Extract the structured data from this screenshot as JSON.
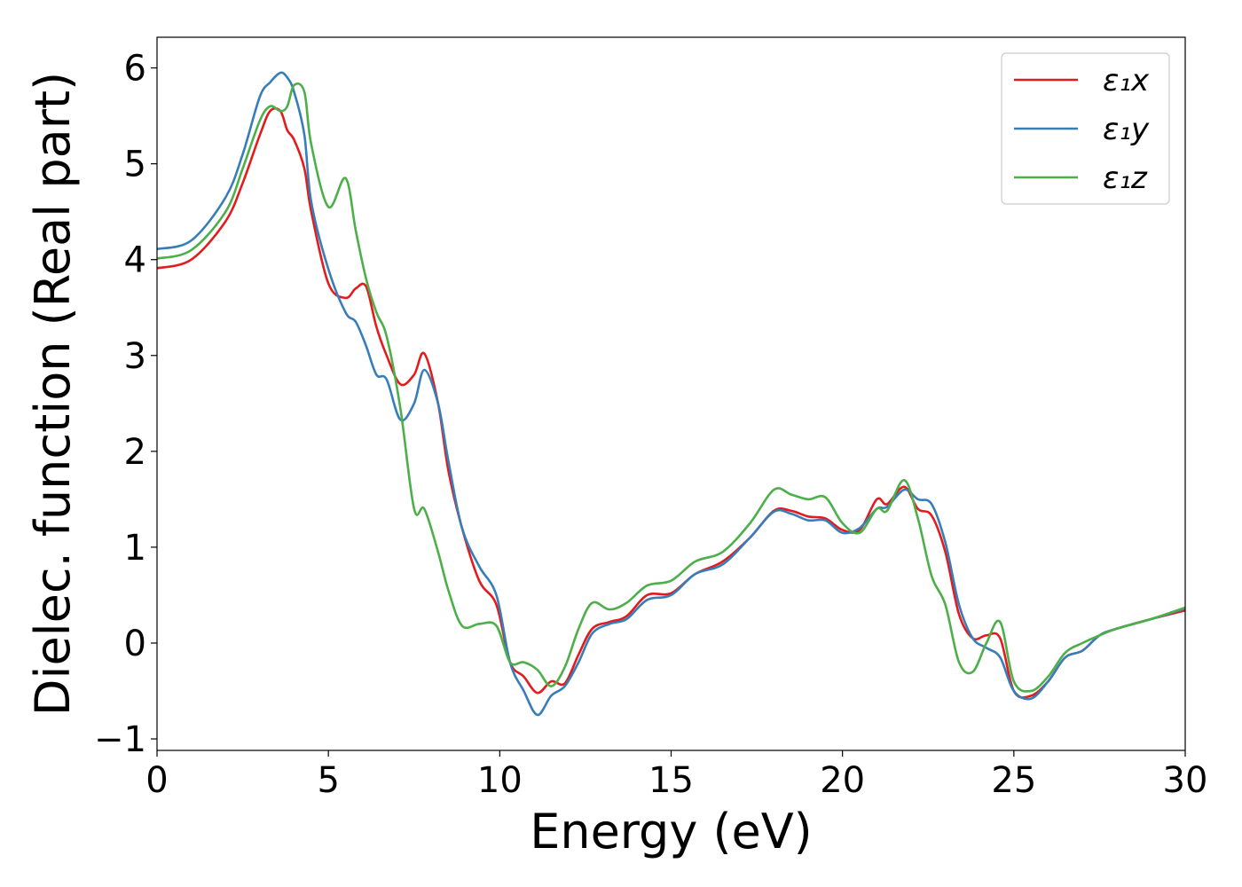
{
  "chart_data": {
    "type": "line",
    "title": "",
    "xlabel": "Energy (eV)",
    "ylabel": "Dielec. function (Real part)",
    "xlim": [
      0,
      30
    ],
    "ylim": [
      -1.12,
      6.32
    ],
    "xticks": [
      0,
      5,
      10,
      15,
      20,
      25,
      30
    ],
    "xtick_labels": [
      "0",
      "5",
      "10",
      "15",
      "20",
      "25",
      "30"
    ],
    "yticks": [
      -1,
      0,
      1,
      2,
      3,
      4,
      5,
      6
    ],
    "ytick_labels": [
      "−1",
      "0",
      "1",
      "2",
      "3",
      "4",
      "5",
      "6"
    ],
    "grid": false,
    "legend_position": "top-right",
    "series": [
      {
        "name": "ε₁x",
        "color": "#e41a1c",
        "x": [
          0,
          1,
          2,
          2.5,
          3,
          3.3,
          3.6,
          3.8,
          4.0,
          4.3,
          4.5,
          5.0,
          5.5,
          5.8,
          6.1,
          6.4,
          6.7,
          7.1,
          7.5,
          7.8,
          8.2,
          8.5,
          8.9,
          9.4,
          9.9,
          10.3,
          10.7,
          11.1,
          11.5,
          11.9,
          12.3,
          12.7,
          13.2,
          13.7,
          14.3,
          15.0,
          15.7,
          16.5,
          17.3,
          18.0,
          18.5,
          19.0,
          19.5,
          20.0,
          20.5,
          21.0,
          21.3,
          21.8,
          22.2,
          22.6,
          23.0,
          23.4,
          23.8,
          24.2,
          24.6,
          25.0,
          25.5,
          26.0,
          26.5,
          27.0,
          27.5,
          28.0,
          29.0,
          30.0
        ],
        "values": [
          3.91,
          4.0,
          4.4,
          4.8,
          5.3,
          5.55,
          5.55,
          5.35,
          5.25,
          4.95,
          4.5,
          3.75,
          3.6,
          3.7,
          3.72,
          3.3,
          3.0,
          2.7,
          2.8,
          3.02,
          2.5,
          1.8,
          1.2,
          0.65,
          0.4,
          -0.2,
          -0.35,
          -0.52,
          -0.4,
          -0.42,
          -0.12,
          0.15,
          0.22,
          0.28,
          0.5,
          0.52,
          0.72,
          0.85,
          1.1,
          1.38,
          1.38,
          1.32,
          1.3,
          1.18,
          1.18,
          1.5,
          1.45,
          1.63,
          1.4,
          1.33,
          0.95,
          0.3,
          0.05,
          0.08,
          0.05,
          -0.5,
          -0.55,
          -0.4,
          -0.15,
          -0.08,
          0.08,
          0.15,
          0.25,
          0.34
        ]
      },
      {
        "name": "ε₁y",
        "color": "#377eb8",
        "x": [
          0,
          1,
          2,
          2.5,
          3,
          3.3,
          3.6,
          3.8,
          4.0,
          4.3,
          4.5,
          5.0,
          5.5,
          5.8,
          6.1,
          6.4,
          6.7,
          7.1,
          7.5,
          7.8,
          8.2,
          8.5,
          8.9,
          9.4,
          9.9,
          10.3,
          10.7,
          11.1,
          11.5,
          11.9,
          12.3,
          12.7,
          13.2,
          13.7,
          14.3,
          15.0,
          15.7,
          16.5,
          17.3,
          18.0,
          18.5,
          19.0,
          19.5,
          20.0,
          20.5,
          21.0,
          21.3,
          21.8,
          22.2,
          22.6,
          23.0,
          23.4,
          23.8,
          24.2,
          24.6,
          25.0,
          25.5,
          26.0,
          26.5,
          27.0,
          27.5,
          28.0,
          29.0,
          30.0
        ],
        "values": [
          4.11,
          4.2,
          4.65,
          5.1,
          5.7,
          5.85,
          5.95,
          5.9,
          5.75,
          5.3,
          4.6,
          3.9,
          3.45,
          3.35,
          3.1,
          2.8,
          2.75,
          2.33,
          2.5,
          2.85,
          2.5,
          1.9,
          1.2,
          0.8,
          0.5,
          -0.2,
          -0.5,
          -0.75,
          -0.55,
          -0.45,
          -0.2,
          0.1,
          0.2,
          0.25,
          0.45,
          0.5,
          0.72,
          0.82,
          1.1,
          1.37,
          1.35,
          1.28,
          1.28,
          1.15,
          1.2,
          1.4,
          1.42,
          1.6,
          1.5,
          1.45,
          1.05,
          0.4,
          0.05,
          -0.05,
          -0.15,
          -0.5,
          -0.58,
          -0.4,
          -0.15,
          -0.08,
          0.08,
          0.15,
          0.25,
          0.36
        ]
      },
      {
        "name": "ε₁z",
        "color": "#4daf4a",
        "x": [
          0,
          1,
          2,
          2.5,
          3,
          3.3,
          3.6,
          3.8,
          4.0,
          4.3,
          4.5,
          5.0,
          5.5,
          5.8,
          6.1,
          6.4,
          6.7,
          7.1,
          7.5,
          7.8,
          8.2,
          8.5,
          8.9,
          9.4,
          9.9,
          10.3,
          10.7,
          11.1,
          11.5,
          11.9,
          12.3,
          12.7,
          13.2,
          13.7,
          14.3,
          15.0,
          15.7,
          16.5,
          17.3,
          18.0,
          18.5,
          19.0,
          19.5,
          20.0,
          20.5,
          21.0,
          21.3,
          21.8,
          22.2,
          22.6,
          23.0,
          23.4,
          23.8,
          24.2,
          24.6,
          25.0,
          25.5,
          26.0,
          26.5,
          27.0,
          27.5,
          28.0,
          29.0,
          30.0
        ],
        "values": [
          4.01,
          4.1,
          4.5,
          4.95,
          5.45,
          5.6,
          5.55,
          5.6,
          5.82,
          5.75,
          5.2,
          4.55,
          4.85,
          4.3,
          3.8,
          3.45,
          3.2,
          2.45,
          1.4,
          1.4,
          0.95,
          0.55,
          0.18,
          0.2,
          0.18,
          -0.2,
          -0.2,
          -0.28,
          -0.45,
          -0.25,
          0.15,
          0.42,
          0.35,
          0.42,
          0.6,
          0.65,
          0.85,
          0.95,
          1.25,
          1.6,
          1.55,
          1.5,
          1.52,
          1.25,
          1.15,
          1.4,
          1.38,
          1.7,
          1.3,
          0.7,
          0.4,
          -0.2,
          -0.3,
          0.0,
          0.22,
          -0.4,
          -0.5,
          -0.35,
          -0.1,
          0.0,
          0.08,
          0.15,
          0.25,
          0.37
        ]
      }
    ]
  }
}
